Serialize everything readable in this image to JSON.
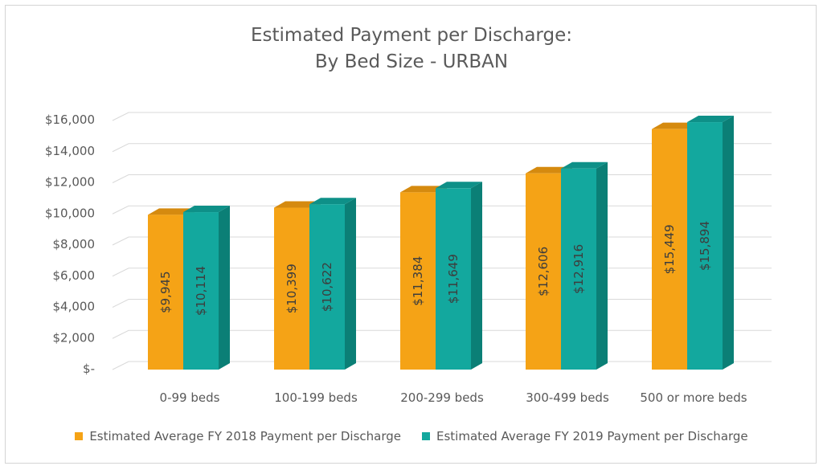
{
  "colors": {
    "fy2018": "#f5a316",
    "fy2018_side": "#c77f0c",
    "fy2018_top": "#d58a0f",
    "fy2019": "#13a89e",
    "fy2019_side": "#0b7f76",
    "fy2019_top": "#0e9088",
    "grid": "#d9d9d9",
    "text": "#595959"
  },
  "chart_data": {
    "type": "bar",
    "title_line1": "Estimated Payment per Discharge:",
    "title_line2": "By Bed Size - URBAN",
    "categories": [
      "0-99 beds",
      "100-199 beds",
      "200-299 beds",
      "300-499 beds",
      "500 or more beds"
    ],
    "series": [
      {
        "name": "Estimated Average FY 2018 Payment per Discharge",
        "values": [
          9945,
          10399,
          11384,
          12606,
          15449
        ],
        "labels": [
          "$9,945",
          "$10,399",
          "$11,384",
          "$12,606",
          "$15,449"
        ]
      },
      {
        "name": "Estimated Average FY 2019 Payment per Discharge",
        "values": [
          10114,
          10622,
          11649,
          12916,
          15894
        ],
        "labels": [
          "$10,114",
          "$10,622",
          "$11,649",
          "$12,916",
          "$15,894"
        ]
      }
    ],
    "ylim": [
      0,
      16000
    ],
    "yticks": [
      0,
      2000,
      4000,
      6000,
      8000,
      10000,
      12000,
      14000,
      16000
    ],
    "ytick_labels": [
      "$-",
      "$2,000",
      "$4,000",
      "$6,000",
      "$8,000",
      "$10,000",
      "$12,000",
      "$14,000",
      "$16,000"
    ],
    "grid": true,
    "legend_position": "bottom"
  }
}
